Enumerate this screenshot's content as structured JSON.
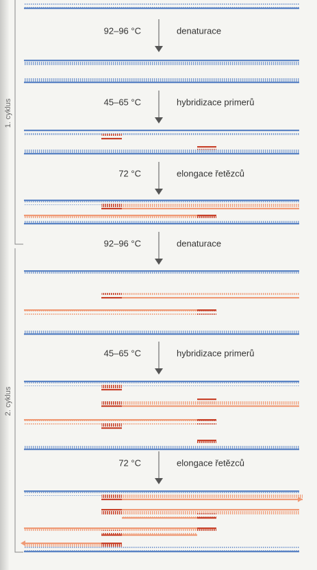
{
  "steps": [
    {
      "temperature": "92–96 °C",
      "label": "denaturace"
    },
    {
      "temperature": "45–65 °C",
      "label": "hybridizace primerů"
    },
    {
      "temperature": "72 °C",
      "label": "elongace řetězců"
    },
    {
      "temperature": "92–96 °C",
      "label": "denaturace"
    },
    {
      "temperature": "45–65 °C",
      "label": "hybridizace primerů"
    },
    {
      "temperature": "72 °C",
      "label": "elongace řetězců"
    }
  ],
  "cycles": [
    {
      "label": "1. cyklus"
    },
    {
      "label": "2. cyklus"
    }
  ]
}
